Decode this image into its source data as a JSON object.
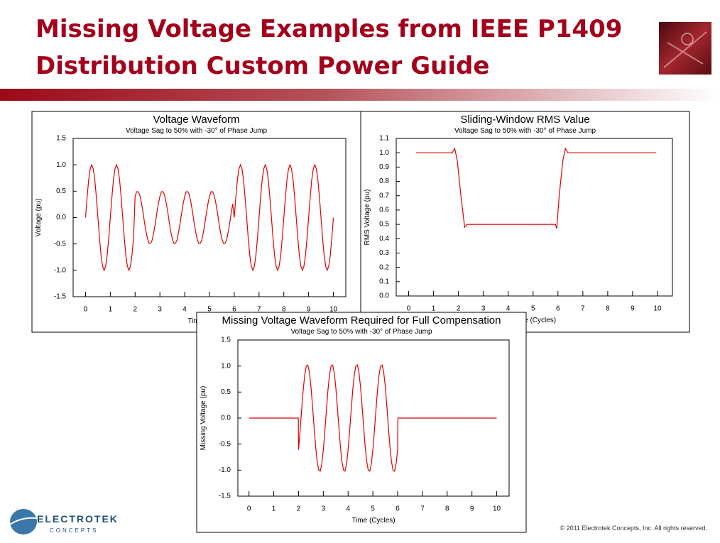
{
  "slide": {
    "title_lines": [
      "Missing Voltage Examples from IEEE P1409",
      "Distribution Custom Power Guide"
    ],
    "logo": [
      "ELECTROTEK",
      "CONCEPTS"
    ],
    "copyright": "© 2011 Electrotek Concepts,  Inc. All rights reserved."
  },
  "chart_data": [
    {
      "type": "line",
      "title": "Voltage Waveform",
      "subtitle": "Voltage Sag to 50% with -30° of Phase Jump",
      "xlabel": "Time (Cycles)",
      "ylabel": "Voltage (pu)",
      "color": "#e00000",
      "xlim": [
        -0.5,
        10.5
      ],
      "xticks": [
        0,
        1,
        2,
        3,
        4,
        5,
        6,
        7,
        8,
        9,
        10
      ],
      "ylim": [
        -1.5,
        1.5
      ],
      "yticks": [
        -1.5,
        {
          "value": -1.0,
          "label": "-1.0"
        },
        -0.5,
        {
          "value": 0,
          "label": "0.0"
        },
        0.5,
        {
          "value": 1.0,
          "label": "1.0"
        },
        1.5
      ],
      "x": [
        0,
        0.0625,
        0.125,
        0.1875,
        0.25,
        0.3125,
        0.375,
        0.4375,
        0.5,
        0.5625,
        0.625,
        0.6875,
        0.75,
        0.8125,
        0.875,
        0.9375,
        1,
        1.0625,
        1.125,
        1.1875,
        1.25,
        1.3125,
        1.375,
        1.4375,
        1.5,
        1.5625,
        1.625,
        1.6875,
        1.75,
        1.8125,
        1.875,
        1.9375,
        2,
        2.0625,
        2.125,
        2.1875,
        2.25,
        2.3125,
        2.375,
        2.4375,
        2.5,
        2.5625,
        2.625,
        2.6875,
        2.75,
        2.8125,
        2.875,
        2.9375,
        3,
        3.0625,
        3.125,
        3.1875,
        3.25,
        3.3125,
        3.375,
        3.4375,
        3.5,
        3.5625,
        3.625,
        3.6875,
        3.75,
        3.8125,
        3.875,
        3.9375,
        4,
        4.0625,
        4.125,
        4.1875,
        4.25,
        4.3125,
        4.375,
        4.4375,
        4.5,
        4.5625,
        4.625,
        4.6875,
        4.75,
        4.8125,
        4.875,
        4.9375,
        5,
        5.0625,
        5.125,
        5.1875,
        5.25,
        5.3125,
        5.375,
        5.4375,
        5.5,
        5.5625,
        5.625,
        5.6875,
        5.75,
        5.8125,
        5.875,
        5.9375,
        6,
        6.0625,
        6.125,
        6.1875,
        6.25,
        6.3125,
        6.375,
        6.4375,
        6.5,
        6.5625,
        6.625,
        6.6875,
        6.75,
        6.8125,
        6.875,
        6.9375,
        7,
        7.0625,
        7.125,
        7.1875,
        7.25,
        7.3125,
        7.375,
        7.4375,
        7.5,
        7.5625,
        7.625,
        7.6875,
        7.75,
        7.8125,
        7.875,
        7.9375,
        8,
        8.0625,
        8.125,
        8.1875,
        8.25,
        8.3125,
        8.375,
        8.4375,
        8.5,
        8.5625,
        8.625,
        8.6875,
        8.75,
        8.8125,
        8.875,
        8.9375,
        9,
        9.0625,
        9.125,
        9.1875,
        9.25,
        9.3125,
        9.375,
        9.4375,
        9.5,
        9.5625,
        9.625,
        9.6875,
        9.75,
        9.8125,
        9.875,
        9.9375,
        10
      ],
      "values": [
        0,
        0.38,
        0.71,
        0.92,
        1,
        0.92,
        0.71,
        0.38,
        0,
        -0.38,
        -0.71,
        -0.92,
        -1,
        -0.92,
        -0.71,
        -0.38,
        0,
        0.38,
        0.71,
        0.92,
        1,
        0.92,
        0.71,
        0.38,
        0,
        -0.38,
        -0.71,
        -0.92,
        -1,
        -0.92,
        -0.71,
        -0.38,
        0.4,
        0.49,
        0.49,
        0.43,
        0.29,
        0.12,
        -0.08,
        -0.26,
        -0.4,
        -0.49,
        -0.49,
        -0.43,
        -0.29,
        -0.12,
        0.08,
        0.26,
        0.4,
        0.49,
        0.49,
        0.43,
        0.29,
        0.12,
        -0.08,
        -0.26,
        -0.4,
        -0.49,
        -0.49,
        -0.43,
        -0.29,
        -0.12,
        0.08,
        0.26,
        0.4,
        0.49,
        0.49,
        0.43,
        0.29,
        0.12,
        -0.08,
        -0.26,
        -0.4,
        -0.49,
        -0.49,
        -0.43,
        -0.29,
        -0.12,
        0.08,
        0.26,
        0.4,
        0.49,
        0.49,
        0.43,
        0.29,
        0.12,
        -0.08,
        -0.26,
        -0.4,
        -0.49,
        -0.49,
        -0.43,
        -0.29,
        -0.12,
        0.08,
        0.26,
        0,
        0.38,
        0.71,
        0.92,
        1,
        0.92,
        0.71,
        0.38,
        0,
        -0.38,
        -0.71,
        -0.92,
        -1,
        -0.92,
        -0.71,
        -0.38,
        0,
        0.38,
        0.71,
        0.92,
        1,
        0.92,
        0.71,
        0.38,
        0,
        -0.38,
        -0.71,
        -0.92,
        -1,
        -0.92,
        -0.71,
        -0.38,
        0,
        0.38,
        0.71,
        0.92,
        1,
        0.92,
        0.71,
        0.38,
        0,
        -0.38,
        -0.71,
        -0.92,
        -1,
        -0.92,
        -0.71,
        -0.38,
        0,
        0.38,
        0.71,
        0.92,
        1,
        0.92,
        0.71,
        0.38,
        0,
        -0.38,
        -0.71,
        -0.92,
        -1,
        -0.92,
        -0.71,
        -0.38,
        0
      ]
    },
    {
      "type": "line",
      "title": "Sliding-Window RMS Value",
      "subtitle": "Voltage Sag to 50% with -30° of Phase Jump",
      "xlabel": "Time (Cycles)",
      "ylabel": "RMS Voltage (pu)",
      "color": "#e00000",
      "xlim": [
        -0.5,
        10.6
      ],
      "xticks": [
        0,
        1,
        2,
        3,
        4,
        5,
        6,
        7,
        8,
        9,
        10
      ],
      "ylim": [
        0,
        1.1
      ],
      "yticks": [
        {
          "value": 0,
          "label": "0.0"
        },
        0.1,
        0.2,
        0.3,
        0.4,
        0.5,
        0.6,
        0.7,
        0.8,
        0.9,
        {
          "value": 1.0,
          "label": "1.0"
        },
        1.1
      ],
      "x": [
        0.3,
        1.75,
        1.85,
        1.95,
        2.1,
        2.25,
        2.35,
        5.9,
        5.95,
        6.05,
        6.2,
        6.3,
        6.4,
        9.95
      ],
      "values": [
        1.0,
        1.0,
        1.03,
        0.95,
        0.7,
        0.48,
        0.5,
        0.5,
        0.47,
        0.7,
        0.95,
        1.03,
        1.0,
        1.0
      ]
    },
    {
      "type": "line",
      "title": "Missing Voltage Waveform Required for Full Compensation",
      "subtitle": "Voltage Sag to 50% with -30° of Phase Jump",
      "xlabel": "Time (Cycles)",
      "ylabel": "Missing Voltage (pu)",
      "color": "#e00000",
      "xlim": [
        -0.45,
        10.5
      ],
      "xticks": [
        0,
        1,
        2,
        3,
        4,
        5,
        6,
        7,
        8,
        9,
        10
      ],
      "ylim": [
        -1.5,
        1.5
      ],
      "yticks": [
        -1.5,
        {
          "value": -1.0,
          "label": "-1.0"
        },
        -0.5,
        {
          "value": 0,
          "label": "0.0"
        },
        0.5,
        {
          "value": 1.0,
          "label": "1.0"
        },
        1.5
      ],
      "x": [
        0,
        1.99,
        2,
        2.0625,
        2.125,
        2.1875,
        2.25,
        2.3125,
        2.375,
        2.4375,
        2.5,
        2.5625,
        2.625,
        2.6875,
        2.75,
        2.8125,
        2.875,
        2.9375,
        3,
        3.0625,
        3.125,
        3.1875,
        3.25,
        3.3125,
        3.375,
        3.4375,
        3.5,
        3.5625,
        3.625,
        3.6875,
        3.75,
        3.8125,
        3.875,
        3.9375,
        4,
        4.0625,
        4.125,
        4.1875,
        4.25,
        4.3125,
        4.375,
        4.4375,
        4.5,
        4.5625,
        4.625,
        4.6875,
        4.75,
        4.8125,
        4.875,
        4.9375,
        5,
        5.0625,
        5.125,
        5.1875,
        5.25,
        5.3125,
        5.375,
        5.4375,
        5.5,
        5.5625,
        5.625,
        5.6875,
        5.75,
        5.8125,
        5.875,
        5.9375,
        6,
        6.01,
        10
      ],
      "values": [
        0,
        0,
        -0.61,
        -0.24,
        0.16,
        0.54,
        0.83,
        1,
        1.02,
        0.88,
        0.61,
        0.24,
        -0.16,
        -0.54,
        -0.83,
        -1,
        -1.02,
        -0.88,
        -0.61,
        -0.24,
        0.16,
        0.54,
        0.83,
        1,
        1.02,
        0.88,
        0.61,
        0.24,
        -0.16,
        -0.54,
        -0.83,
        -1,
        -1.02,
        -0.88,
        -0.61,
        -0.24,
        0.16,
        0.54,
        0.83,
        1,
        1.02,
        0.88,
        0.61,
        0.24,
        -0.16,
        -0.54,
        -0.83,
        -1,
        -1.02,
        -0.88,
        -0.61,
        -0.24,
        0.16,
        0.54,
        0.83,
        1,
        1.02,
        0.88,
        0.61,
        0.24,
        -0.16,
        -0.54,
        -0.83,
        -1,
        -1.02,
        -0.88,
        -0.61,
        0,
        0
      ]
    }
  ]
}
